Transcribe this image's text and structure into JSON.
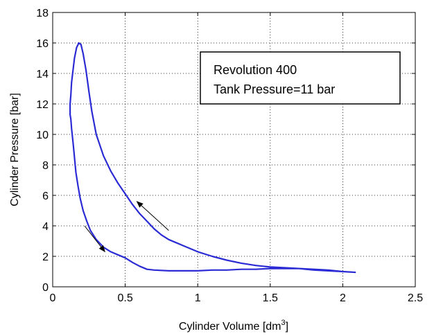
{
  "chart_data": {
    "type": "line",
    "title": "",
    "xlabel": "Cylinder Volume [dm",
    "xlabel_sup": "3",
    "xlabel_suffix": "]",
    "ylabel": "Cylinder Pressure [bar]",
    "xlim": [
      0,
      2.5
    ],
    "ylim": [
      0,
      18
    ],
    "xticks": [
      "0",
      "0.5",
      "1",
      "1.5",
      "2",
      "2.5"
    ],
    "yticks": [
      "0",
      "2",
      "4",
      "6",
      "8",
      "10",
      "12",
      "14",
      "16",
      "18"
    ],
    "grid": true,
    "legend_position": "top-right",
    "annotation_lines": [
      "Revolution 400",
      "Tank Pressure=11 bar"
    ],
    "line_color": "#2b2bd6",
    "series": [
      {
        "points": [
          [
            2.09,
            0.95
          ],
          [
            2.0,
            1.0
          ],
          [
            1.9,
            1.1
          ],
          [
            1.8,
            1.15
          ],
          [
            1.7,
            1.2
          ],
          [
            1.6,
            1.25
          ],
          [
            1.5,
            1.3
          ],
          [
            1.4,
            1.4
          ],
          [
            1.3,
            1.55
          ],
          [
            1.2,
            1.75
          ],
          [
            1.1,
            2.0
          ],
          [
            1.0,
            2.3
          ],
          [
            0.9,
            2.7
          ],
          [
            0.85,
            2.9
          ],
          [
            0.8,
            3.1
          ],
          [
            0.75,
            3.4
          ],
          [
            0.7,
            3.8
          ],
          [
            0.65,
            4.3
          ],
          [
            0.6,
            4.8
          ],
          [
            0.55,
            5.4
          ],
          [
            0.5,
            6.1
          ],
          [
            0.45,
            6.8
          ],
          [
            0.4,
            7.6
          ],
          [
            0.35,
            8.6
          ],
          [
            0.3,
            10.0
          ],
          [
            0.27,
            11.5
          ],
          [
            0.25,
            12.8
          ],
          [
            0.23,
            14.2
          ],
          [
            0.21,
            15.3
          ],
          [
            0.195,
            15.9
          ],
          [
            0.18,
            16.0
          ],
          [
            0.165,
            15.7
          ],
          [
            0.15,
            15.0
          ],
          [
            0.14,
            14.2
          ],
          [
            0.13,
            13.4
          ],
          [
            0.125,
            12.6
          ],
          [
            0.12,
            12.0
          ],
          [
            0.12,
            11.3
          ],
          [
            0.125,
            11.0
          ],
          [
            0.13,
            10.4
          ],
          [
            0.14,
            9.5
          ],
          [
            0.15,
            8.5
          ],
          [
            0.16,
            7.5
          ],
          [
            0.175,
            6.6
          ],
          [
            0.19,
            5.8
          ],
          [
            0.21,
            5.0
          ],
          [
            0.235,
            4.3
          ],
          [
            0.26,
            3.7
          ],
          [
            0.3,
            3.1
          ],
          [
            0.35,
            2.6
          ],
          [
            0.4,
            2.3
          ],
          [
            0.45,
            2.1
          ],
          [
            0.5,
            1.9
          ],
          [
            0.55,
            1.6
          ],
          [
            0.6,
            1.35
          ],
          [
            0.65,
            1.15
          ],
          [
            0.7,
            1.1
          ],
          [
            0.8,
            1.05
          ],
          [
            0.9,
            1.05
          ],
          [
            1.0,
            1.05
          ],
          [
            1.1,
            1.1
          ],
          [
            1.2,
            1.1
          ],
          [
            1.3,
            1.15
          ],
          [
            1.4,
            1.15
          ],
          [
            1.5,
            1.2
          ],
          [
            1.6,
            1.2
          ],
          [
            1.7,
            1.2
          ],
          [
            1.8,
            1.1
          ],
          [
            1.9,
            1.05
          ],
          [
            2.0,
            1.0
          ],
          [
            2.09,
            0.95
          ]
        ]
      }
    ],
    "arrows": [
      {
        "from": [
          0.8,
          3.7
        ],
        "to": [
          0.58,
          5.6
        ]
      },
      {
        "from": [
          0.22,
          4.0
        ],
        "to": [
          0.36,
          2.3
        ]
      }
    ]
  }
}
